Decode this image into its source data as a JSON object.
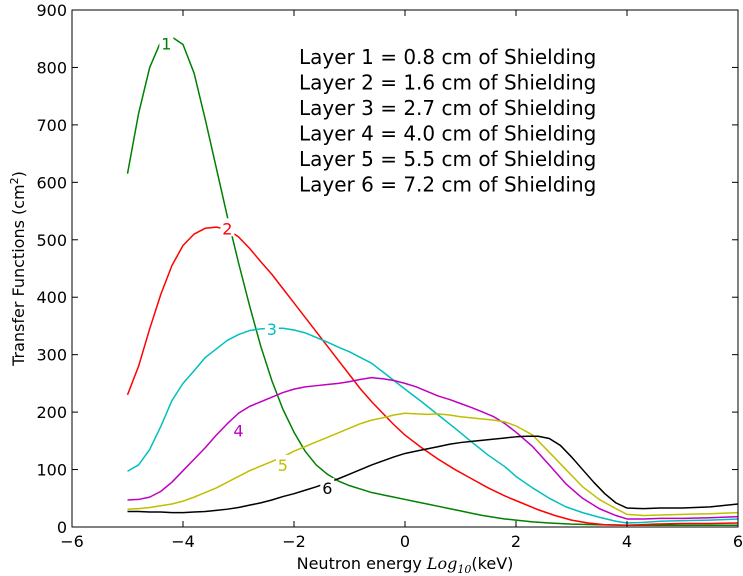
{
  "chart_data": {
    "type": "line",
    "title": "",
    "xlabel_prefix": "Neutron energy ",
    "xlabel_italic": "Log",
    "xlabel_subscript": "10",
    "xlabel_suffix": "(keV)",
    "ylabel_prefix": "Transfer Functions (cm",
    "ylabel_superscript": "2",
    "ylabel_suffix": ")",
    "xlim": [
      -6,
      6
    ],
    "ylim": [
      0,
      900
    ],
    "xticks": [
      -6,
      -4,
      -2,
      0,
      2,
      4,
      6
    ],
    "xtick_labels": [
      "−6",
      "−4",
      "−2",
      "0",
      "2",
      "4",
      "6"
    ],
    "yticks": [
      0,
      100,
      200,
      300,
      400,
      500,
      600,
      700,
      800,
      900
    ],
    "ytick_labels": [
      "0",
      "100",
      "200",
      "300",
      "400",
      "500",
      "600",
      "700",
      "800",
      "900"
    ],
    "grid": false,
    "legend_lines": [
      "Layer 1 = 0.8 cm of Shielding",
      "Layer 2 = 1.6 cm of Shielding",
      "Layer 3 = 2.7 cm of Shielding",
      "Layer 4 = 4.0 cm of Shielding",
      "Layer 5 = 5.5 cm of Shielding",
      "Layer 6 = 7.2 cm of Shielding"
    ],
    "legend_placement": "top-right",
    "series": [
      {
        "name": "1",
        "color": "#008000",
        "label_at": [
          -4.3,
          842
        ],
        "points": [
          [
            -5,
            615
          ],
          [
            -4.8,
            720
          ],
          [
            -4.6,
            800
          ],
          [
            -4.4,
            845
          ],
          [
            -4.2,
            853
          ],
          [
            -4.0,
            840
          ],
          [
            -3.8,
            790
          ],
          [
            -3.6,
            710
          ],
          [
            -3.4,
            625
          ],
          [
            -3.2,
            540
          ],
          [
            -3.0,
            460
          ],
          [
            -2.8,
            385
          ],
          [
            -2.6,
            315
          ],
          [
            -2.4,
            255
          ],
          [
            -2.2,
            205
          ],
          [
            -2.0,
            165
          ],
          [
            -1.8,
            132
          ],
          [
            -1.6,
            108
          ],
          [
            -1.4,
            92
          ],
          [
            -1.2,
            80
          ],
          [
            -1.0,
            72
          ],
          [
            -0.8,
            66
          ],
          [
            -0.6,
            60
          ],
          [
            -0.4,
            56
          ],
          [
            -0.2,
            52
          ],
          [
            0.0,
            48
          ],
          [
            0.2,
            44
          ],
          [
            0.4,
            40
          ],
          [
            0.6,
            36
          ],
          [
            0.8,
            32
          ],
          [
            1.0,
            28
          ],
          [
            1.2,
            24
          ],
          [
            1.4,
            20
          ],
          [
            1.6,
            17
          ],
          [
            1.8,
            14
          ],
          [
            2.0,
            12
          ],
          [
            2.3,
            9
          ],
          [
            2.6,
            7
          ],
          [
            3.0,
            5
          ],
          [
            3.5,
            4
          ],
          [
            4.0,
            3
          ],
          [
            4.5,
            3
          ],
          [
            5.0,
            3
          ],
          [
            5.5,
            3
          ],
          [
            6.0,
            3
          ]
        ]
      },
      {
        "name": "2",
        "color": "#ff0000",
        "label_at": [
          -3.2,
          520
        ],
        "points": [
          [
            -5,
            230
          ],
          [
            -4.8,
            280
          ],
          [
            -4.6,
            345
          ],
          [
            -4.4,
            405
          ],
          [
            -4.2,
            455
          ],
          [
            -4.0,
            490
          ],
          [
            -3.8,
            510
          ],
          [
            -3.6,
            520
          ],
          [
            -3.4,
            522
          ],
          [
            -3.2,
            518
          ],
          [
            -3.0,
            505
          ],
          [
            -2.8,
            485
          ],
          [
            -2.6,
            462
          ],
          [
            -2.4,
            440
          ],
          [
            -2.2,
            415
          ],
          [
            -2.0,
            390
          ],
          [
            -1.8,
            365
          ],
          [
            -1.6,
            340
          ],
          [
            -1.4,
            315
          ],
          [
            -1.2,
            290
          ],
          [
            -1.0,
            265
          ],
          [
            -0.8,
            240
          ],
          [
            -0.6,
            218
          ],
          [
            -0.4,
            198
          ],
          [
            -0.2,
            178
          ],
          [
            0.0,
            160
          ],
          [
            0.3,
            138
          ],
          [
            0.6,
            118
          ],
          [
            0.9,
            100
          ],
          [
            1.2,
            84
          ],
          [
            1.5,
            68
          ],
          [
            1.8,
            54
          ],
          [
            2.1,
            42
          ],
          [
            2.4,
            30
          ],
          [
            2.7,
            20
          ],
          [
            3.0,
            12
          ],
          [
            3.3,
            7
          ],
          [
            3.6,
            4
          ],
          [
            4.0,
            3
          ],
          [
            4.5,
            5
          ],
          [
            5.0,
            6
          ],
          [
            5.5,
            6
          ],
          [
            6.0,
            7
          ]
        ]
      },
      {
        "name": "3",
        "color": "#00bfbf",
        "label_at": [
          -2.4,
          345
        ],
        "points": [
          [
            -5,
            97
          ],
          [
            -4.8,
            108
          ],
          [
            -4.6,
            135
          ],
          [
            -4.4,
            175
          ],
          [
            -4.2,
            220
          ],
          [
            -4.0,
            250
          ],
          [
            -3.8,
            272
          ],
          [
            -3.6,
            295
          ],
          [
            -3.4,
            310
          ],
          [
            -3.2,
            325
          ],
          [
            -3.0,
            335
          ],
          [
            -2.8,
            342
          ],
          [
            -2.6,
            345
          ],
          [
            -2.4,
            346
          ],
          [
            -2.2,
            346
          ],
          [
            -2.0,
            343
          ],
          [
            -1.8,
            338
          ],
          [
            -1.6,
            330
          ],
          [
            -1.4,
            322
          ],
          [
            -1.2,
            313
          ],
          [
            -1.0,
            305
          ],
          [
            -0.8,
            295
          ],
          [
            -0.6,
            285
          ],
          [
            -0.4,
            270
          ],
          [
            -0.2,
            255
          ],
          [
            0.0,
            240
          ],
          [
            0.3,
            218
          ],
          [
            0.6,
            195
          ],
          [
            0.9,
            172
          ],
          [
            1.2,
            148
          ],
          [
            1.5,
            125
          ],
          [
            1.8,
            105
          ],
          [
            2.0,
            88
          ],
          [
            2.3,
            68
          ],
          [
            2.6,
            50
          ],
          [
            2.9,
            35
          ],
          [
            3.2,
            25
          ],
          [
            3.5,
            17
          ],
          [
            3.8,
            10
          ],
          [
            4.0,
            7
          ],
          [
            4.3,
            8
          ],
          [
            4.6,
            10
          ],
          [
            5.0,
            11
          ],
          [
            5.5,
            12
          ],
          [
            6.0,
            14
          ]
        ]
      },
      {
        "name": "4",
        "color": "#bf00bf",
        "label_at": [
          -3.0,
          168
        ],
        "points": [
          [
            -5,
            47
          ],
          [
            -4.8,
            48
          ],
          [
            -4.6,
            52
          ],
          [
            -4.4,
            62
          ],
          [
            -4.2,
            78
          ],
          [
            -4.0,
            98
          ],
          [
            -3.8,
            118
          ],
          [
            -3.6,
            138
          ],
          [
            -3.4,
            160
          ],
          [
            -3.2,
            180
          ],
          [
            -3.0,
            198
          ],
          [
            -2.8,
            210
          ],
          [
            -2.6,
            218
          ],
          [
            -2.4,
            226
          ],
          [
            -2.2,
            234
          ],
          [
            -2.0,
            240
          ],
          [
            -1.8,
            244
          ],
          [
            -1.6,
            246
          ],
          [
            -1.4,
            248
          ],
          [
            -1.2,
            250
          ],
          [
            -1.0,
            253
          ],
          [
            -0.8,
            257
          ],
          [
            -0.6,
            260
          ],
          [
            -0.4,
            258
          ],
          [
            -0.2,
            255
          ],
          [
            0.0,
            250
          ],
          [
            0.2,
            244
          ],
          [
            0.4,
            236
          ],
          [
            0.6,
            228
          ],
          [
            0.8,
            222
          ],
          [
            1.0,
            215
          ],
          [
            1.2,
            208
          ],
          [
            1.4,
            200
          ],
          [
            1.6,
            192
          ],
          [
            1.8,
            180
          ],
          [
            2.0,
            165
          ],
          [
            2.3,
            140
          ],
          [
            2.6,
            108
          ],
          [
            2.9,
            75
          ],
          [
            3.2,
            50
          ],
          [
            3.5,
            32
          ],
          [
            3.8,
            20
          ],
          [
            4.0,
            14
          ],
          [
            4.3,
            14
          ],
          [
            4.6,
            15
          ],
          [
            5.0,
            15
          ],
          [
            5.5,
            16
          ],
          [
            6.0,
            18
          ]
        ]
      },
      {
        "name": "5",
        "color": "#bfbf00",
        "label_at": [
          -2.2,
          108
        ],
        "points": [
          [
            -5,
            31
          ],
          [
            -4.8,
            32
          ],
          [
            -4.6,
            34
          ],
          [
            -4.4,
            37
          ],
          [
            -4.2,
            40
          ],
          [
            -4.0,
            45
          ],
          [
            -3.8,
            52
          ],
          [
            -3.6,
            60
          ],
          [
            -3.4,
            68
          ],
          [
            -3.2,
            78
          ],
          [
            -3.0,
            88
          ],
          [
            -2.8,
            98
          ],
          [
            -2.6,
            106
          ],
          [
            -2.4,
            114
          ],
          [
            -2.2,
            122
          ],
          [
            -2.0,
            132
          ],
          [
            -1.8,
            140
          ],
          [
            -1.6,
            148
          ],
          [
            -1.4,
            156
          ],
          [
            -1.2,
            164
          ],
          [
            -1.0,
            172
          ],
          [
            -0.8,
            180
          ],
          [
            -0.6,
            186
          ],
          [
            -0.4,
            190
          ],
          [
            -0.2,
            195
          ],
          [
            0.0,
            198
          ],
          [
            0.2,
            197
          ],
          [
            0.4,
            196
          ],
          [
            0.6,
            197
          ],
          [
            0.8,
            195
          ],
          [
            1.0,
            192
          ],
          [
            1.2,
            190
          ],
          [
            1.4,
            188
          ],
          [
            1.6,
            186
          ],
          [
            1.8,
            183
          ],
          [
            2.0,
            176
          ],
          [
            2.3,
            160
          ],
          [
            2.6,
            130
          ],
          [
            2.9,
            100
          ],
          [
            3.2,
            70
          ],
          [
            3.5,
            48
          ],
          [
            3.8,
            32
          ],
          [
            4.0,
            22
          ],
          [
            4.3,
            20
          ],
          [
            4.6,
            21
          ],
          [
            5.0,
            22
          ],
          [
            5.5,
            23
          ],
          [
            6.0,
            25
          ]
        ]
      },
      {
        "name": "6",
        "color": "#000000",
        "label_at": [
          -1.4,
          68
        ],
        "points": [
          [
            -5,
            27
          ],
          [
            -4.8,
            27
          ],
          [
            -4.6,
            26
          ],
          [
            -4.4,
            26
          ],
          [
            -4.2,
            25
          ],
          [
            -4.0,
            25
          ],
          [
            -3.8,
            26
          ],
          [
            -3.6,
            27
          ],
          [
            -3.4,
            29
          ],
          [
            -3.2,
            31
          ],
          [
            -3.0,
            34
          ],
          [
            -2.8,
            38
          ],
          [
            -2.6,
            42
          ],
          [
            -2.4,
            47
          ],
          [
            -2.2,
            53
          ],
          [
            -2.0,
            58
          ],
          [
            -1.8,
            64
          ],
          [
            -1.6,
            70
          ],
          [
            -1.4,
            77
          ],
          [
            -1.2,
            84
          ],
          [
            -1.0,
            92
          ],
          [
            -0.8,
            100
          ],
          [
            -0.6,
            108
          ],
          [
            -0.4,
            115
          ],
          [
            -0.2,
            122
          ],
          [
            0.0,
            128
          ],
          [
            0.2,
            132
          ],
          [
            0.4,
            136
          ],
          [
            0.6,
            140
          ],
          [
            0.8,
            144
          ],
          [
            1.0,
            147
          ],
          [
            1.2,
            149
          ],
          [
            1.4,
            151
          ],
          [
            1.6,
            153
          ],
          [
            1.8,
            155
          ],
          [
            2.0,
            157
          ],
          [
            2.2,
            158
          ],
          [
            2.4,
            158
          ],
          [
            2.6,
            154
          ],
          [
            2.8,
            142
          ],
          [
            3.0,
            122
          ],
          [
            3.2,
            100
          ],
          [
            3.4,
            78
          ],
          [
            3.6,
            58
          ],
          [
            3.8,
            42
          ],
          [
            4.0,
            33
          ],
          [
            4.3,
            32
          ],
          [
            4.6,
            33
          ],
          [
            5.0,
            33
          ],
          [
            5.5,
            35
          ],
          [
            6.0,
            40
          ]
        ]
      }
    ]
  }
}
